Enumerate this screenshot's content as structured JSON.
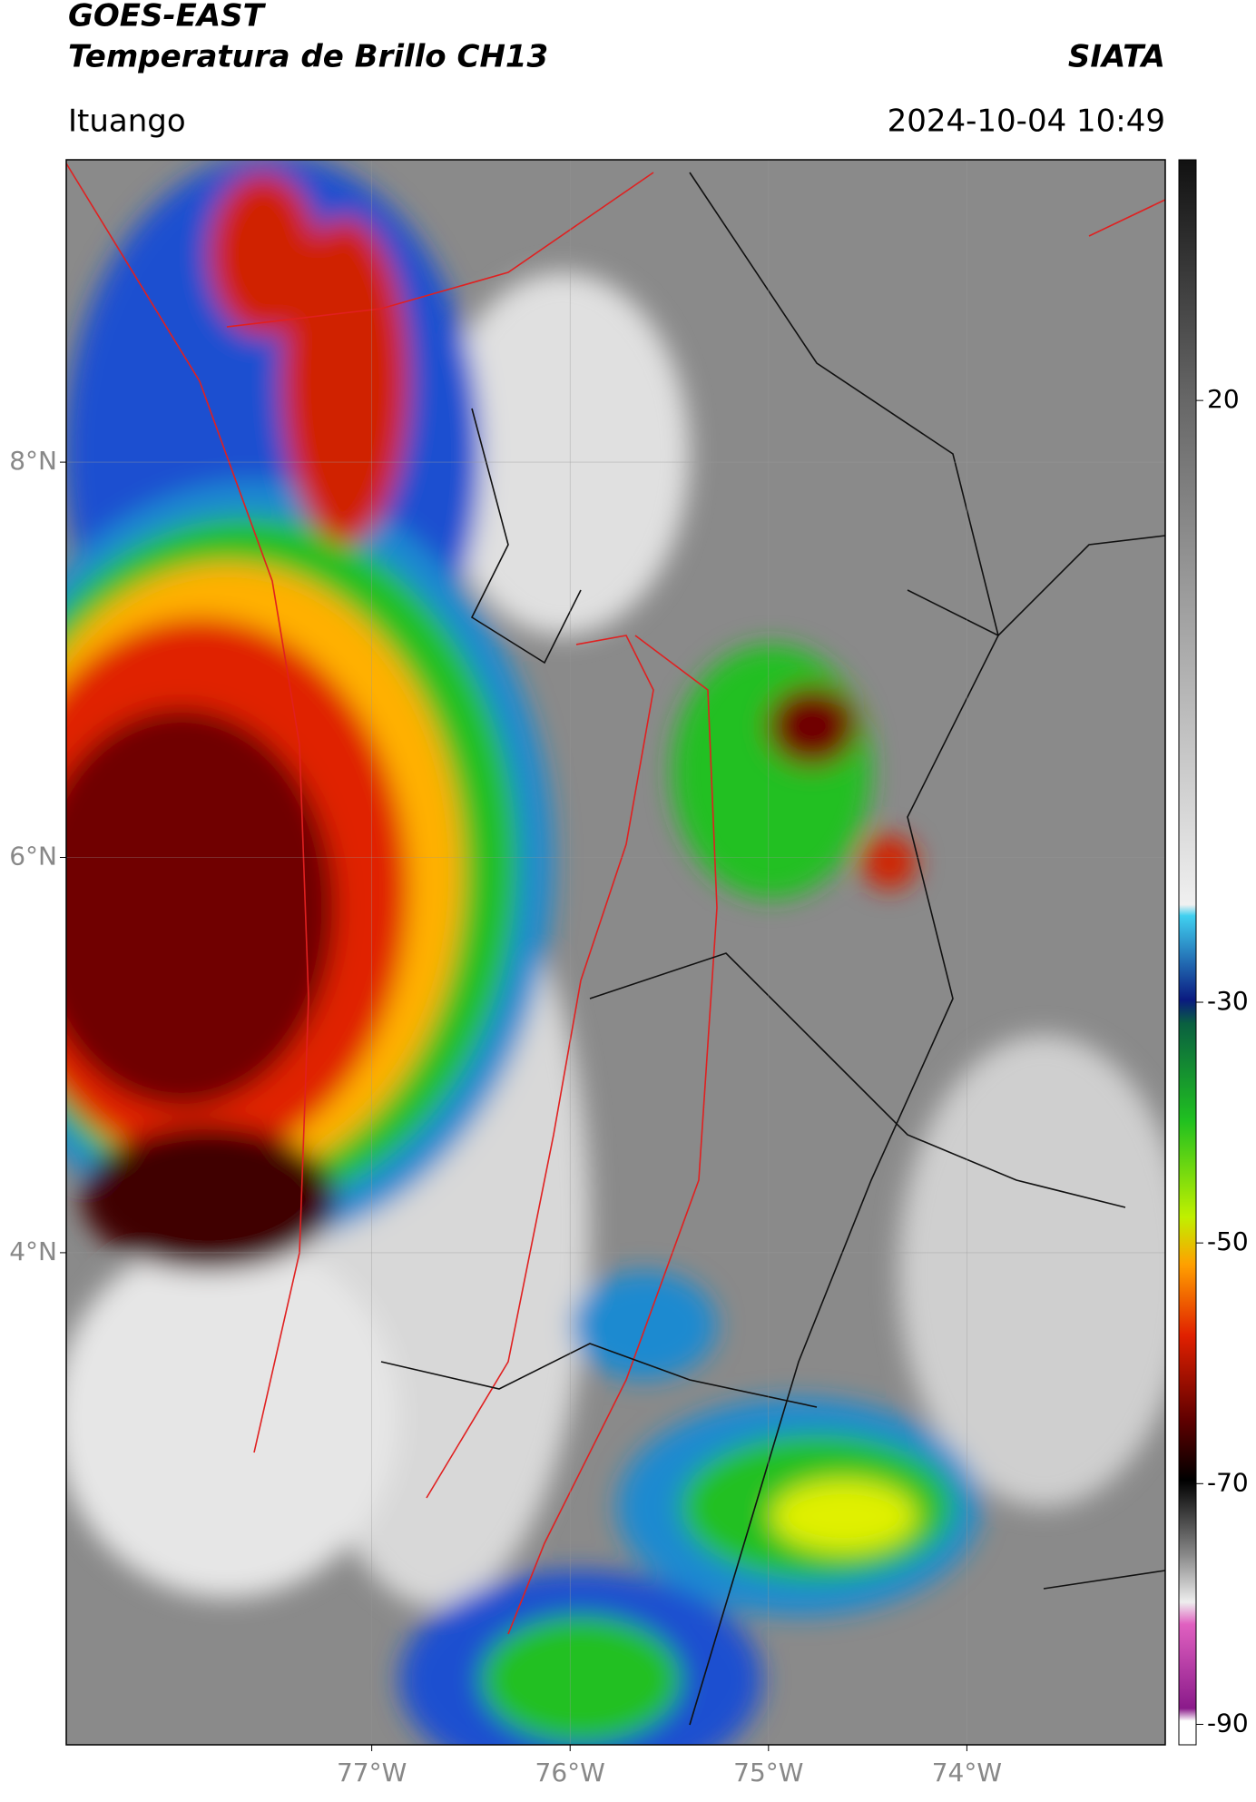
{
  "header": {
    "title_line1": "GOES-EAST",
    "title_line2": "Temperatura de Brillo CH13",
    "org": "SIATA",
    "location": "Ituango",
    "datetime": "2024-10-04 10:49"
  },
  "map": {
    "xlim": [
      -78.54,
      -73.0
    ],
    "ylim": [
      1.51,
      9.53
    ],
    "xticks": [
      {
        "value": -77,
        "label": "77°W"
      },
      {
        "value": -76,
        "label": "76°W"
      },
      {
        "value": -75,
        "label": "75°W"
      },
      {
        "value": -74,
        "label": "74°W"
      }
    ],
    "yticks": [
      {
        "value": 8,
        "label": "8°N"
      },
      {
        "value": 6,
        "label": "6°N"
      },
      {
        "value": 4,
        "label": "4°N"
      }
    ]
  },
  "colorbar": {
    "lim": [
      -91.7,
      40
    ],
    "ticks": [
      20,
      -30,
      -50,
      -70,
      -90
    ]
  }
}
